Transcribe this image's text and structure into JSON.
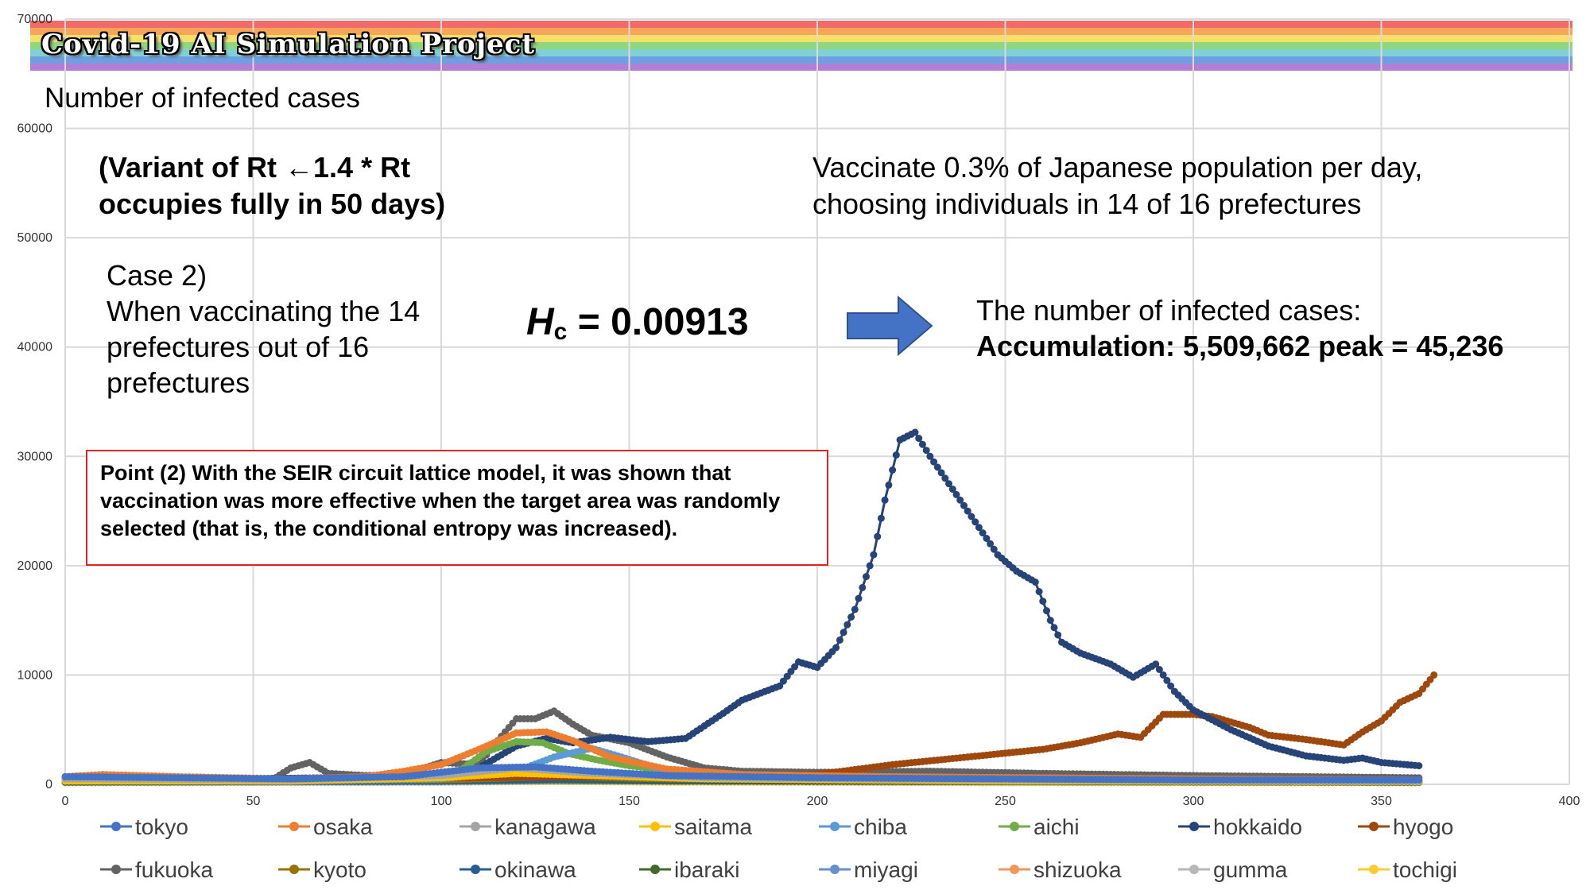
{
  "banner": {
    "title": "Covid-19 AI Simulation Project",
    "stripe_colors": [
      "#f26b6b",
      "#f7a659",
      "#f5e06a",
      "#8ed680",
      "#7fd1d6",
      "#6f9fe0",
      "#b37fd6"
    ]
  },
  "subtitle": "Number of infected cases",
  "annotations": {
    "variant_line1": "(Variant of Rt ←1.4 * Rt",
    "variant_line2": "occupies fully in 50 days)",
    "vaccinate_line1": "Vaccinate 0.3% of Japanese population per day,",
    "vaccinate_line2": "choosing individuals in 14 of 16 prefectures",
    "case_line1": "Case 2)",
    "case_line2": "When vaccinating the 14",
    "case_line3": "prefectures out of 16",
    "case_line4": "prefectures",
    "hc_symbol": "H",
    "hc_sub": "c",
    "hc_value": " = 0.00913",
    "result_line1": "The number of infected cases:",
    "result_line2": "Accumulation: 5,509,662 peak = 45,236",
    "point_text": "Point (2) With the SEIR circuit lattice model, it was shown that vaccination was more effective when the target area was randomly selected (that is, the conditional entropy was increased).",
    "arrow_color": "#4472c4"
  },
  "chart_data": {
    "type": "line",
    "xlim": [
      0,
      400
    ],
    "ylim": [
      0,
      70000
    ],
    "x_ticks": [
      0,
      50,
      100,
      150,
      200,
      250,
      300,
      350,
      400
    ],
    "y_ticks": [
      0,
      10000,
      20000,
      30000,
      40000,
      50000,
      60000,
      70000
    ],
    "grid": true,
    "legend_position": "bottom",
    "series": [
      {
        "name": "tokyo",
        "color": "#4472c4",
        "points": [
          [
            0,
            700
          ],
          [
            30,
            600
          ],
          [
            60,
            500
          ],
          [
            90,
            700
          ],
          [
            110,
            1500
          ],
          [
            125,
            1600
          ],
          [
            140,
            1200
          ],
          [
            160,
            800
          ],
          [
            200,
            600
          ],
          [
            250,
            500
          ],
          [
            300,
            400
          ],
          [
            360,
            400
          ]
        ]
      },
      {
        "name": "osaka",
        "color": "#ed7d31",
        "points": [
          [
            0,
            700
          ],
          [
            10,
            900
          ],
          [
            30,
            700
          ],
          [
            60,
            500
          ],
          [
            80,
            700
          ],
          [
            90,
            1200
          ],
          [
            100,
            1800
          ],
          [
            110,
            3200
          ],
          [
            120,
            4700
          ],
          [
            128,
            4800
          ],
          [
            135,
            4000
          ],
          [
            145,
            2500
          ],
          [
            160,
            1400
          ],
          [
            180,
            900
          ],
          [
            220,
            700
          ],
          [
            300,
            500
          ],
          [
            360,
            400
          ]
        ]
      },
      {
        "name": "kanagawa",
        "color": "#a5a5a5",
        "points": [
          [
            0,
            500
          ],
          [
            60,
            400
          ],
          [
            100,
            800
          ],
          [
            120,
            1500
          ],
          [
            140,
            1000
          ],
          [
            170,
            600
          ],
          [
            250,
            400
          ],
          [
            360,
            300
          ]
        ]
      },
      {
        "name": "saitama",
        "color": "#ffc000",
        "points": [
          [
            0,
            300
          ],
          [
            60,
            300
          ],
          [
            100,
            600
          ],
          [
            120,
            1000
          ],
          [
            140,
            800
          ],
          [
            170,
            500
          ],
          [
            250,
            300
          ],
          [
            360,
            250
          ]
        ]
      },
      {
        "name": "chiba",
        "color": "#5b9bd5",
        "points": [
          [
            0,
            400
          ],
          [
            60,
            300
          ],
          [
            100,
            500
          ],
          [
            120,
            1200
          ],
          [
            130,
            2500
          ],
          [
            140,
            3300
          ],
          [
            148,
            2500
          ],
          [
            160,
            1200
          ],
          [
            190,
            700
          ],
          [
            250,
            400
          ],
          [
            360,
            300
          ]
        ]
      },
      {
        "name": "aichi",
        "color": "#70ad47",
        "points": [
          [
            0,
            400
          ],
          [
            60,
            300
          ],
          [
            100,
            500
          ],
          [
            106,
            1500
          ],
          [
            112,
            3000
          ],
          [
            120,
            3900
          ],
          [
            127,
            3800
          ],
          [
            134,
            2800
          ],
          [
            142,
            2200
          ],
          [
            150,
            1700
          ],
          [
            165,
            1100
          ],
          [
            190,
            700
          ],
          [
            250,
            400
          ],
          [
            360,
            300
          ]
        ]
      },
      {
        "name": "hokkaido",
        "color": "#264478",
        "points": [
          [
            0,
            600
          ],
          [
            40,
            500
          ],
          [
            70,
            600
          ],
          [
            100,
            800
          ],
          [
            110,
            1500
          ],
          [
            120,
            3500
          ],
          [
            128,
            4200
          ],
          [
            135,
            3800
          ],
          [
            145,
            4300
          ],
          [
            155,
            3900
          ],
          [
            165,
            4200
          ],
          [
            175,
            6500
          ],
          [
            180,
            7700
          ],
          [
            190,
            9000
          ],
          [
            195,
            11200
          ],
          [
            200,
            10700
          ],
          [
            205,
            12500
          ],
          [
            210,
            16000
          ],
          [
            215,
            21000
          ],
          [
            218,
            26000
          ],
          [
            222,
            31500
          ],
          [
            226,
            32200
          ],
          [
            230,
            30000
          ],
          [
            236,
            27000
          ],
          [
            242,
            24000
          ],
          [
            248,
            21000
          ],
          [
            253,
            19500
          ],
          [
            258,
            18500
          ],
          [
            262,
            15000
          ],
          [
            265,
            13000
          ],
          [
            270,
            12000
          ],
          [
            278,
            11000
          ],
          [
            284,
            9800
          ],
          [
            290,
            11000
          ],
          [
            295,
            8500
          ],
          [
            300,
            6800
          ],
          [
            310,
            5000
          ],
          [
            320,
            3500
          ],
          [
            330,
            2600
          ],
          [
            340,
            2200
          ],
          [
            345,
            2400
          ],
          [
            350,
            2000
          ],
          [
            360,
            1700
          ]
        ]
      },
      {
        "name": "hyogo",
        "color": "#9e480e",
        "points": [
          [
            0,
            500
          ],
          [
            50,
            400
          ],
          [
            100,
            600
          ],
          [
            150,
            700
          ],
          [
            200,
            900
          ],
          [
            220,
            1800
          ],
          [
            240,
            2500
          ],
          [
            260,
            3200
          ],
          [
            270,
            3800
          ],
          [
            280,
            4600
          ],
          [
            286,
            4300
          ],
          [
            292,
            6400
          ],
          [
            300,
            6400
          ],
          [
            305,
            6200
          ],
          [
            315,
            5200
          ],
          [
            320,
            4500
          ],
          [
            330,
            4100
          ],
          [
            340,
            3600
          ],
          [
            345,
            4800
          ],
          [
            350,
            5800
          ],
          [
            355,
            7500
          ],
          [
            360,
            8300
          ],
          [
            364,
            10000
          ]
        ]
      },
      {
        "name": "fukuoka",
        "color": "#636363",
        "points": [
          [
            0,
            300
          ],
          [
            55,
            400
          ],
          [
            60,
            1500
          ],
          [
            65,
            2000
          ],
          [
            70,
            1000
          ],
          [
            80,
            800
          ],
          [
            90,
            900
          ],
          [
            100,
            2000
          ],
          [
            110,
            1800
          ],
          [
            115,
            4000
          ],
          [
            120,
            6000
          ],
          [
            125,
            6000
          ],
          [
            130,
            6700
          ],
          [
            135,
            5500
          ],
          [
            140,
            4500
          ],
          [
            150,
            3800
          ],
          [
            160,
            2500
          ],
          [
            170,
            1500
          ],
          [
            180,
            1200
          ],
          [
            200,
            1100
          ],
          [
            230,
            1200
          ],
          [
            260,
            1000
          ],
          [
            300,
            800
          ],
          [
            360,
            600
          ]
        ]
      },
      {
        "name": "kyoto",
        "color": "#997300",
        "points": [
          [
            0,
            300
          ],
          [
            100,
            400
          ],
          [
            130,
            700
          ],
          [
            160,
            500
          ],
          [
            250,
            300
          ],
          [
            360,
            250
          ]
        ]
      },
      {
        "name": "okinawa",
        "color": "#255e91",
        "points": [
          [
            0,
            300
          ],
          [
            100,
            300
          ],
          [
            130,
            500
          ],
          [
            160,
            400
          ],
          [
            250,
            300
          ],
          [
            360,
            250
          ]
        ]
      },
      {
        "name": "ibaraki",
        "color": "#43682b",
        "points": [
          [
            0,
            200
          ],
          [
            100,
            300
          ],
          [
            130,
            400
          ],
          [
            160,
            300
          ],
          [
            250,
            250
          ],
          [
            360,
            200
          ]
        ]
      },
      {
        "name": "miyagi",
        "color": "#698ed0",
        "points": [
          [
            0,
            200
          ],
          [
            100,
            250
          ],
          [
            130,
            350
          ],
          [
            160,
            300
          ],
          [
            250,
            250
          ],
          [
            360,
            200
          ]
        ]
      },
      {
        "name": "shizuoka",
        "color": "#f1975a",
        "points": [
          [
            0,
            250
          ],
          [
            100,
            300
          ],
          [
            130,
            450
          ],
          [
            160,
            350
          ],
          [
            250,
            250
          ],
          [
            360,
            200
          ]
        ]
      },
      {
        "name": "gumma",
        "color": "#b7b7b7",
        "points": [
          [
            0,
            150
          ],
          [
            100,
            200
          ],
          [
            130,
            300
          ],
          [
            160,
            250
          ],
          [
            250,
            200
          ],
          [
            360,
            150
          ]
        ]
      },
      {
        "name": "tochigi",
        "color": "#ffcd33",
        "points": [
          [
            0,
            150
          ],
          [
            100,
            200
          ],
          [
            130,
            250
          ],
          [
            160,
            200
          ],
          [
            250,
            150
          ],
          [
            360,
            150
          ]
        ]
      }
    ]
  }
}
